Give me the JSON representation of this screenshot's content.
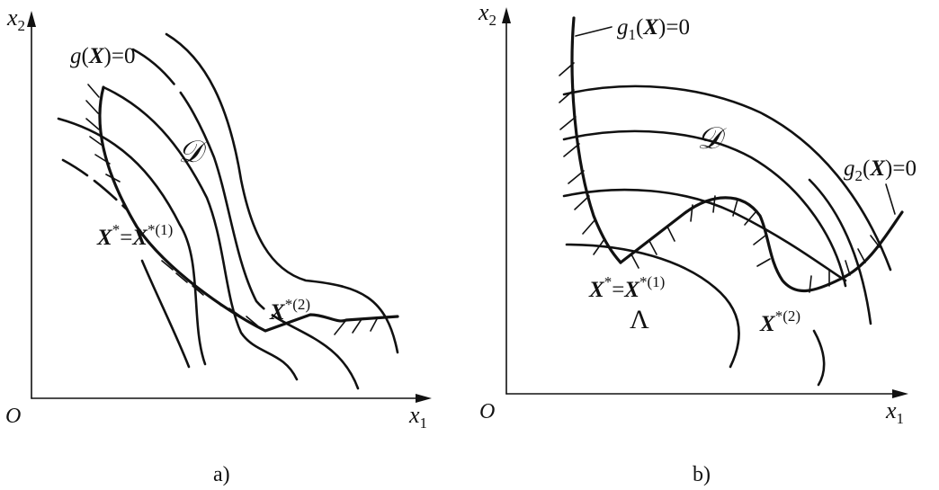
{
  "panel_a": {
    "caption": "a)",
    "origin": "O",
    "x_axis": {
      "var": "x",
      "sub": "1"
    },
    "y_axis": {
      "var": "x",
      "sub": "2"
    },
    "constraint": {
      "func": "g",
      "arg": "X",
      "rhs": "=0"
    },
    "region": "𝒟",
    "point_1": {
      "lhs": "X",
      "lhs_sup": "*",
      "eq": "=",
      "rhs": "X",
      "rhs_sup": "*(1)"
    },
    "point_2": {
      "var": "X",
      "sup": "*(2)"
    }
  },
  "panel_b": {
    "caption": "b)",
    "origin": "O",
    "x_axis": {
      "var": "x",
      "sub": "1"
    },
    "y_axis": {
      "var": "x",
      "sub": "2"
    },
    "constraint_1": {
      "func": "g",
      "sub": "1",
      "arg": "X",
      "rhs": "=0"
    },
    "constraint_2": {
      "func": "g",
      "sub": "2",
      "arg": "X",
      "rhs": "=0"
    },
    "region": "𝒟",
    "point_1": {
      "lhs": "X",
      "lhs_sup": "*",
      "eq": "=",
      "rhs": "X",
      "rhs_sup": "*(1)"
    },
    "point_2": {
      "var": "X",
      "sup": "*(2)"
    },
    "marker": "Λ"
  }
}
